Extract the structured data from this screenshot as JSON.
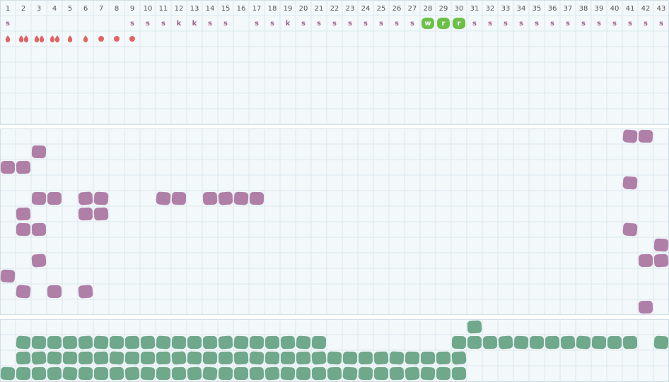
{
  "columns": [
    "1",
    "2",
    "3",
    "4",
    "5",
    "6",
    "7",
    "8",
    "9",
    "10",
    "11",
    "12",
    "13",
    "14",
    "15",
    "16",
    "17",
    "18",
    "19",
    "20",
    "21",
    "22",
    "23",
    "24",
    "25",
    "26",
    "27",
    "28",
    "29",
    "30",
    "31",
    "32",
    "33",
    "34",
    "35",
    "36",
    "37",
    "38",
    "39",
    "40",
    "41",
    "42",
    "43"
  ],
  "section1": {
    "labels": [
      "s",
      null,
      null,
      null,
      null,
      null,
      null,
      null,
      "s",
      "s",
      "s",
      "k",
      "k",
      "s",
      "s",
      null,
      "s",
      "s",
      "k",
      "s",
      "s",
      "s",
      "s",
      "s",
      "s",
      "s",
      "s",
      "w",
      "r",
      "r",
      "s",
      "s",
      "s",
      "s",
      "s",
      "s",
      "s",
      "s",
      "s",
      "s",
      "s",
      "s",
      "s"
    ],
    "label_color": "#a0648f",
    "highlight_cols": [
      28,
      29,
      30
    ],
    "highlight_color": "#6cc04a",
    "icons": [
      "drop",
      "drops",
      "drops",
      "drops",
      "drop",
      "drop",
      "dot",
      "dot",
      "dot"
    ],
    "icon_color": "#e06464"
  },
  "section2": {
    "color": "#b07fa8",
    "rows": [
      [
        41,
        42
      ],
      [
        3
      ],
      [
        1,
        2
      ],
      [
        41
      ],
      [
        3,
        4,
        6,
        7,
        11,
        12,
        14,
        15,
        16,
        17
      ],
      [
        2,
        6,
        7
      ],
      [
        2,
        3,
        41
      ],
      [
        43
      ],
      [
        3,
        42,
        43
      ],
      [
        1
      ],
      [
        2,
        4,
        6
      ],
      [
        42
      ]
    ]
  },
  "section3": {
    "color": "#6fa88a",
    "rows": [
      [
        31
      ],
      [
        2,
        3,
        4,
        5,
        6,
        7,
        8,
        9,
        10,
        11,
        12,
        13,
        14,
        15,
        16,
        17,
        18,
        19,
        20,
        21,
        30,
        31,
        32,
        33,
        34,
        35,
        36,
        37,
        38,
        39,
        40,
        41,
        43
      ],
      [
        2,
        3,
        4,
        5,
        6,
        7,
        8,
        9,
        10,
        11,
        12,
        13,
        14,
        15,
        16,
        17,
        18,
        19,
        20,
        21,
        22,
        23,
        24,
        25,
        26,
        27,
        28,
        29,
        30
      ],
      [
        1,
        2,
        3,
        4,
        5,
        6,
        7,
        8,
        9,
        10,
        11,
        12,
        13,
        14,
        15,
        16,
        17,
        18,
        19,
        20,
        21,
        22,
        23,
        24,
        25,
        26,
        27,
        28,
        29,
        30
      ]
    ]
  }
}
